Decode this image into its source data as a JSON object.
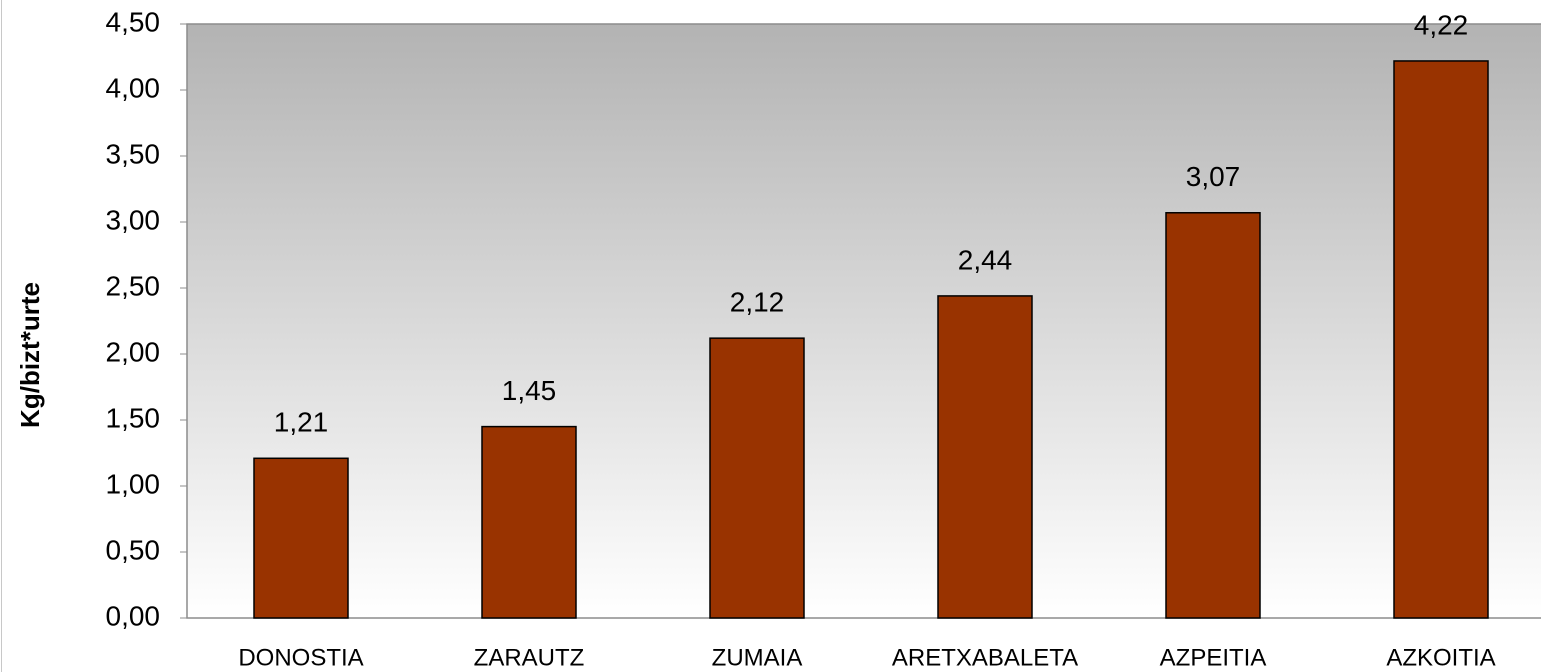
{
  "chart_data": {
    "type": "bar",
    "y_label": "Kg/bizt*urte",
    "categories": [
      "DONOSTIA",
      "ZARAUTZ",
      "ZUMAIA",
      "ARETXABALETA",
      "AZPEITIA",
      "AZKOITIA"
    ],
    "values": [
      1.21,
      1.45,
      2.12,
      2.44,
      3.07,
      4.22
    ],
    "value_labels": [
      "1,21",
      "1,45",
      "2,12",
      "2,44",
      "3,07",
      "4,22"
    ],
    "color": "#993300",
    "ylim": [
      0,
      4.5
    ],
    "yticks": [
      {
        "value": 0,
        "label": "0,00"
      },
      {
        "value": 0.5,
        "label": "0,50"
      },
      {
        "value": 1,
        "label": "1,00"
      },
      {
        "value": 1.5,
        "label": "1,50"
      },
      {
        "value": 2,
        "label": "2,00"
      },
      {
        "value": 2.5,
        "label": "2,50"
      },
      {
        "value": 3,
        "label": "3,00"
      },
      {
        "value": 3.5,
        "label": "3,50"
      },
      {
        "value": 4,
        "label": "4,00"
      },
      {
        "value": 4.5,
        "label": "4,50"
      }
    ],
    "grid": false
  }
}
